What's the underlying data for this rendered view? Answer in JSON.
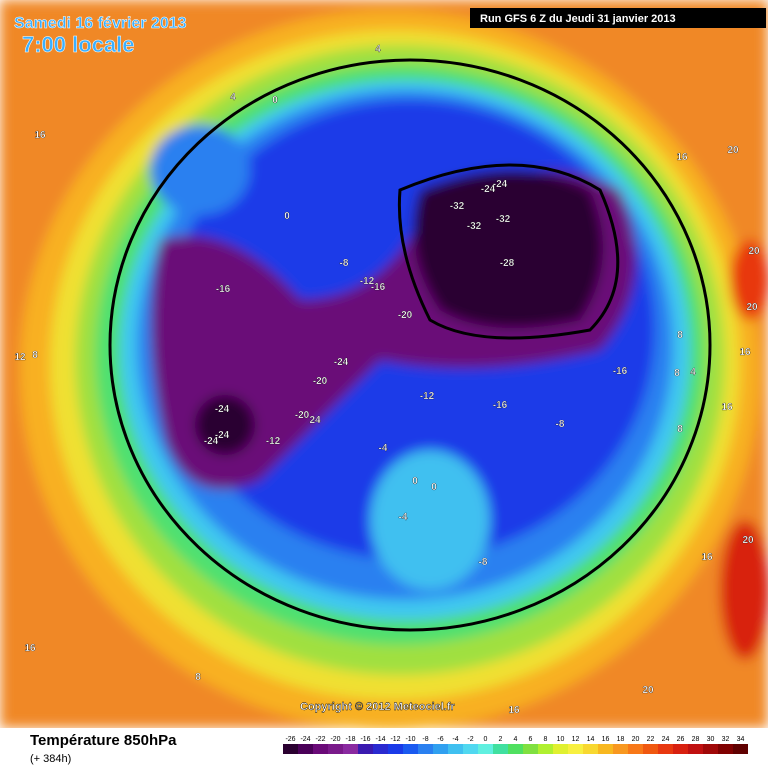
{
  "header": {
    "date": "Samedi 16 février 2013",
    "time": "7:00 locale",
    "run": "Run GFS 6 Z du Jeudi 31 janvier 2013"
  },
  "map": {
    "copyright": "Copyright © 2012 Meteociel.fr",
    "contour_labels": [
      "4",
      "4",
      "0",
      "16",
      "16",
      "20",
      "-24",
      "-24",
      "-32",
      "-32",
      "-32",
      "-28",
      "0",
      "-8",
      "-12",
      "-16",
      "-16",
      "-20",
      "20",
      "20",
      "8",
      "16",
      "12",
      "8",
      "-24",
      "-20",
      "-16",
      "8",
      "4",
      "-12",
      "-16",
      "-24",
      "-20",
      "24",
      "-24",
      "-24",
      "-12",
      "-8",
      "16",
      "8",
      "-4",
      "0",
      "0",
      "-4",
      "-8",
      "16",
      "20",
      "16",
      "8",
      "20",
      "16"
    ]
  },
  "footer": {
    "title": "Température 850hPa",
    "lead": "(+ 384h)"
  },
  "legend": {
    "ticks": [
      "-26",
      "-24",
      "-22",
      "-20",
      "-18",
      "-16",
      "-14",
      "-12",
      "-10",
      "-8",
      "-6",
      "-4",
      "-2",
      "0",
      "2",
      "4",
      "6",
      "8",
      "10",
      "12",
      "14",
      "16",
      "18",
      "20",
      "22",
      "24",
      "26",
      "28",
      "30",
      "32",
      "34"
    ],
    "colors": [
      "#2a0030",
      "#4a0058",
      "#6a0a78",
      "#7a1a8a",
      "#8a2aa0",
      "#3a1ab0",
      "#2a2ad0",
      "#1a3ae8",
      "#1a5af0",
      "#2a80f0",
      "#30a0f0",
      "#40c0f0",
      "#50d8f0",
      "#60f0e0",
      "#40e0a0",
      "#50e060",
      "#80e040",
      "#b0f030",
      "#e0f030",
      "#f8f040",
      "#f8d830",
      "#f8b820",
      "#f89820",
      "#f87818",
      "#f05810",
      "#e83810",
      "#d82010",
      "#c01010",
      "#a00808",
      "#800000",
      "#600000"
    ]
  }
}
